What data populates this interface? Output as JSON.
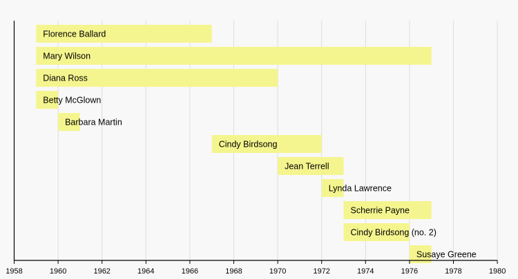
{
  "chart_data": {
    "type": "timeline",
    "title": "",
    "xlabel": "",
    "ylabel": "",
    "xlim": [
      1958,
      1980
    ],
    "grid": true,
    "x_ticks": [
      "1958",
      "1960",
      "1962",
      "1964",
      "1966",
      "1968",
      "1970",
      "1972",
      "1974",
      "1976",
      "1978",
      "1980"
    ],
    "bar_color": "#f5f58f",
    "series": [
      {
        "name": "Florence Ballard",
        "start": 1959,
        "end": 1967
      },
      {
        "name": "Mary Wilson",
        "start": 1959,
        "end": 1977
      },
      {
        "name": "Diana Ross",
        "start": 1959,
        "end": 1970
      },
      {
        "name": "Betty McGlown",
        "start": 1959,
        "end": 1960
      },
      {
        "name": "Barbara Martin",
        "start": 1960,
        "end": 1961
      },
      {
        "name": "Cindy Birdsong",
        "start": 1967,
        "end": 1972
      },
      {
        "name": "Jean Terrell",
        "start": 1970,
        "end": 1973
      },
      {
        "name": "Lynda Lawrence",
        "start": 1972,
        "end": 1973
      },
      {
        "name": "Scherrie Payne",
        "start": 1973,
        "end": 1977
      },
      {
        "name": "Cindy Birdsong (no. 2)",
        "start": 1973,
        "end": 1976
      },
      {
        "name": "Susaye Greene",
        "start": 1976,
        "end": 1977
      }
    ]
  }
}
